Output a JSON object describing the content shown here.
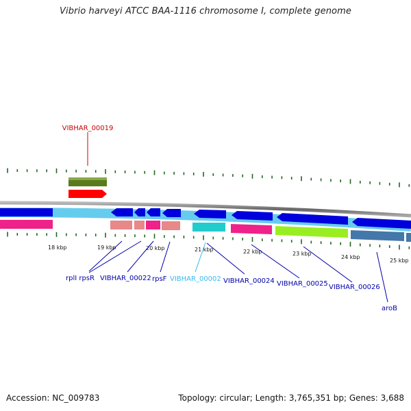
{
  "title": "Vibrio harveyi ATCC BAA-1116 chromosome I, complete genome",
  "footer": {
    "accession": "Accession: NC_009783",
    "summary": "Topology: circular; Length: 3,765,351 bp; Genes: 3,688"
  },
  "scale_ticks": [
    "18 kbp",
    "19 kbp",
    "20 kbp",
    "21 kbp",
    "22 kbp",
    "23 kbp",
    "24 kbp",
    "25 kbp"
  ],
  "genes_above": [
    {
      "label": "VIBHAR_00019",
      "color": "#cc0000"
    }
  ],
  "genes_below": [
    {
      "label": "rplI rpsR",
      "color": "#0000aa"
    },
    {
      "label": "VIBHAR_00022",
      "color": "#0000aa"
    },
    {
      "label": "rpsF",
      "color": "#0000aa"
    },
    {
      "label": "VIBHAR_00002",
      "color": "#33bbee"
    },
    {
      "label": "VIBHAR_00024",
      "color": "#0000aa"
    },
    {
      "label": "VIBHAR_00025",
      "color": "#0000aa"
    },
    {
      "label": "VIBHAR_00026",
      "color": "#0000aa"
    },
    {
      "label": "aroB",
      "color": "#0000aa"
    }
  ],
  "colors": {
    "cds_forward": "#ff0000",
    "cds_reverse": "#0000dd",
    "gene_band": "#66ccee",
    "tick": "#226622",
    "backbone": "#777777",
    "olive_feature": "#5a7a1e",
    "magenta_feature": "#ee2288",
    "salmon_feature": "#e88888",
    "cyan_feature": "#22cccc",
    "lime_feature": "#99ee22",
    "steel_feature": "#4477aa"
  }
}
